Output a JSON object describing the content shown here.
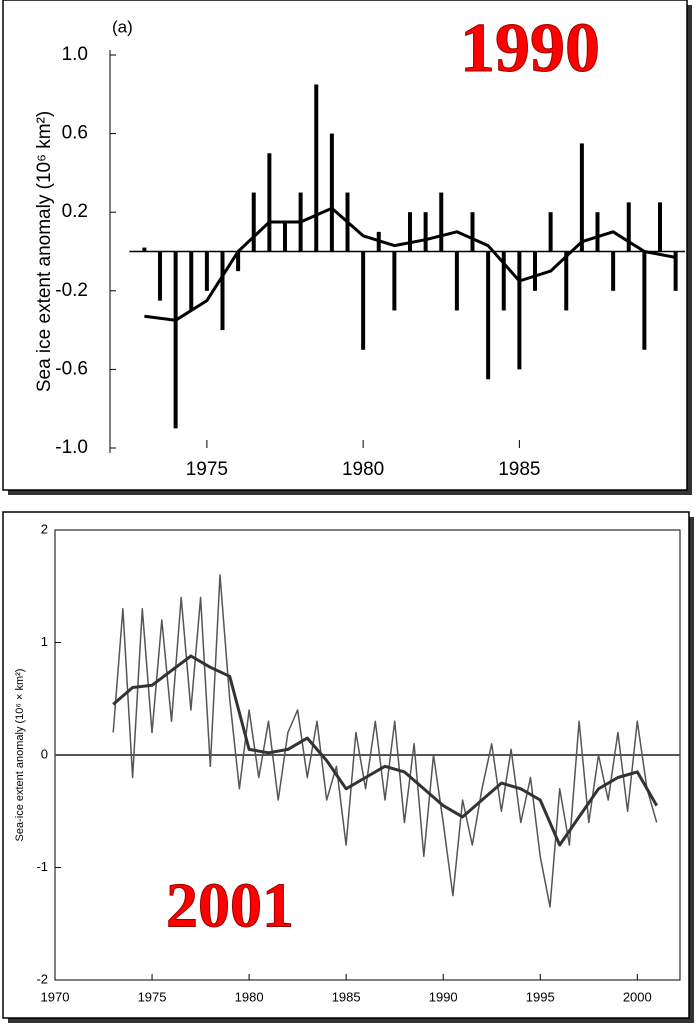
{
  "chart_data": [
    {
      "type": "bar",
      "title": "(a)",
      "annotation": "1990",
      "ylabel": "Sea ice extent anomaly (10⁶ km²)",
      "xlim": [
        1971.9,
        1990.3
      ],
      "xticks": [
        1975,
        1980,
        1985
      ],
      "ylim": [
        -1,
        1
      ],
      "yticks": [
        {
          "value": 1,
          "label": "1.0"
        },
        0.6,
        0.2,
        -0.2,
        -0.6,
        {
          "value": -1,
          "label": "-1.0"
        }
      ],
      "zero_line": true,
      "series": [
        {
          "type": "bar",
          "color": "#000000",
          "x": [
            1973,
            1973.5,
            1974,
            1974.5,
            1975,
            1975.5,
            1976,
            1976.5,
            1977,
            1977.5,
            1978,
            1978.5,
            1979,
            1979.5,
            1980,
            1980.5,
            1981,
            1981.5,
            1982,
            1982.5,
            1983,
            1983.5,
            1984,
            1984.5,
            1985,
            1985.5,
            1986,
            1986.5,
            1987,
            1987.5,
            1988,
            1988.5,
            1989,
            1989.5,
            1990
          ],
          "values": [
            0.02,
            -0.25,
            -0.9,
            -0.3,
            -0.2,
            -0.4,
            -0.1,
            0.3,
            0.5,
            0.15,
            0.3,
            0.85,
            0.6,
            0.3,
            -0.5,
            0.1,
            -0.3,
            0.2,
            0.2,
            0.3,
            -0.3,
            0.2,
            -0.65,
            -0.3,
            -0.6,
            -0.2,
            0.2,
            -0.3,
            0.55,
            0.2,
            -0.2,
            0.25,
            -0.5,
            0.25,
            -0.2
          ]
        },
        {
          "type": "line",
          "color": "#000000",
          "x": [
            1973,
            1974,
            1975,
            1976,
            1977,
            1978,
            1979,
            1980,
            1981,
            1982,
            1983,
            1984,
            1985,
            1986,
            1987,
            1988,
            1989,
            1990
          ],
          "values": [
            -0.33,
            -0.35,
            -0.25,
            0,
            0.15,
            0.15,
            0.22,
            0.08,
            0.03,
            0.06,
            0.1,
            0.03,
            -0.15,
            -0.1,
            0.05,
            0.1,
            0,
            -0.03
          ]
        }
      ]
    },
    {
      "type": "line",
      "annotation": "2001",
      "ylabel": "Sea-ice extent anomaly (10⁶ × km²)",
      "xlim": [
        1970,
        2002.2
      ],
      "xticks": [
        1970,
        1975,
        1980,
        1985,
        1990,
        1995,
        2000
      ],
      "ylim": [
        -2,
        2
      ],
      "yticks": [
        2,
        1,
        0,
        -1,
        -2
      ],
      "zero_line": true,
      "series": [
        {
          "type": "line",
          "color": "#555555",
          "x": [
            1973,
            1973.5,
            1974,
            1974.5,
            1975,
            1975.5,
            1976,
            1976.5,
            1977,
            1977.5,
            1978,
            1978.5,
            1979,
            1979.5,
            1980,
            1980.5,
            1981,
            1981.5,
            1982,
            1982.5,
            1983,
            1983.5,
            1984,
            1984.5,
            1985,
            1985.5,
            1986,
            1986.5,
            1987,
            1987.5,
            1988,
            1988.5,
            1989,
            1989.5,
            1990,
            1990.5,
            1991,
            1991.5,
            1992,
            1992.5,
            1993,
            1993.5,
            1994,
            1994.5,
            1995,
            1995.5,
            1996,
            1996.5,
            1997,
            1997.5,
            1998,
            1998.5,
            1999,
            1999.5,
            2000,
            2000.5,
            2001
          ],
          "values": [
            0.2,
            1.3,
            -0.2,
            1.3,
            0.2,
            1.2,
            0.3,
            1.4,
            0.4,
            1.4,
            -0.1,
            1.6,
            0.5,
            -0.3,
            0.4,
            -0.2,
            0.3,
            -0.4,
            0.2,
            0.4,
            -0.2,
            0.3,
            -0.4,
            -0.1,
            -0.8,
            0.2,
            -0.3,
            0.3,
            -0.4,
            0.3,
            -0.6,
            0.1,
            -0.9,
            0,
            -0.6,
            -1.25,
            -0.4,
            -0.8,
            -0.3,
            0.1,
            -0.5,
            0.05,
            -0.6,
            -0.2,
            -0.9,
            -1.35,
            -0.3,
            -0.8,
            0.3,
            -0.6,
            0,
            -0.4,
            0.2,
            -0.5,
            0.3,
            -0.3,
            -0.6
          ]
        },
        {
          "type": "line",
          "color": "#333333",
          "x": [
            1973,
            1974,
            1975,
            1976,
            1977,
            1978,
            1979,
            1980,
            1981,
            1982,
            1983,
            1984,
            1985,
            1986,
            1987,
            1988,
            1989,
            1990,
            1991,
            1992,
            1993,
            1994,
            1995,
            1996,
            1997,
            1998,
            1999,
            2000,
            2001
          ],
          "values": [
            0.45,
            0.6,
            0.62,
            0.75,
            0.88,
            0.78,
            0.7,
            0.05,
            0.02,
            0.05,
            0.15,
            -0.05,
            -0.3,
            -0.2,
            -0.1,
            -0.15,
            -0.3,
            -0.45,
            -0.55,
            -0.4,
            -0.25,
            -0.3,
            -0.4,
            -0.8,
            -0.55,
            -0.3,
            -0.2,
            -0.15,
            -0.45
          ]
        }
      ]
    }
  ]
}
